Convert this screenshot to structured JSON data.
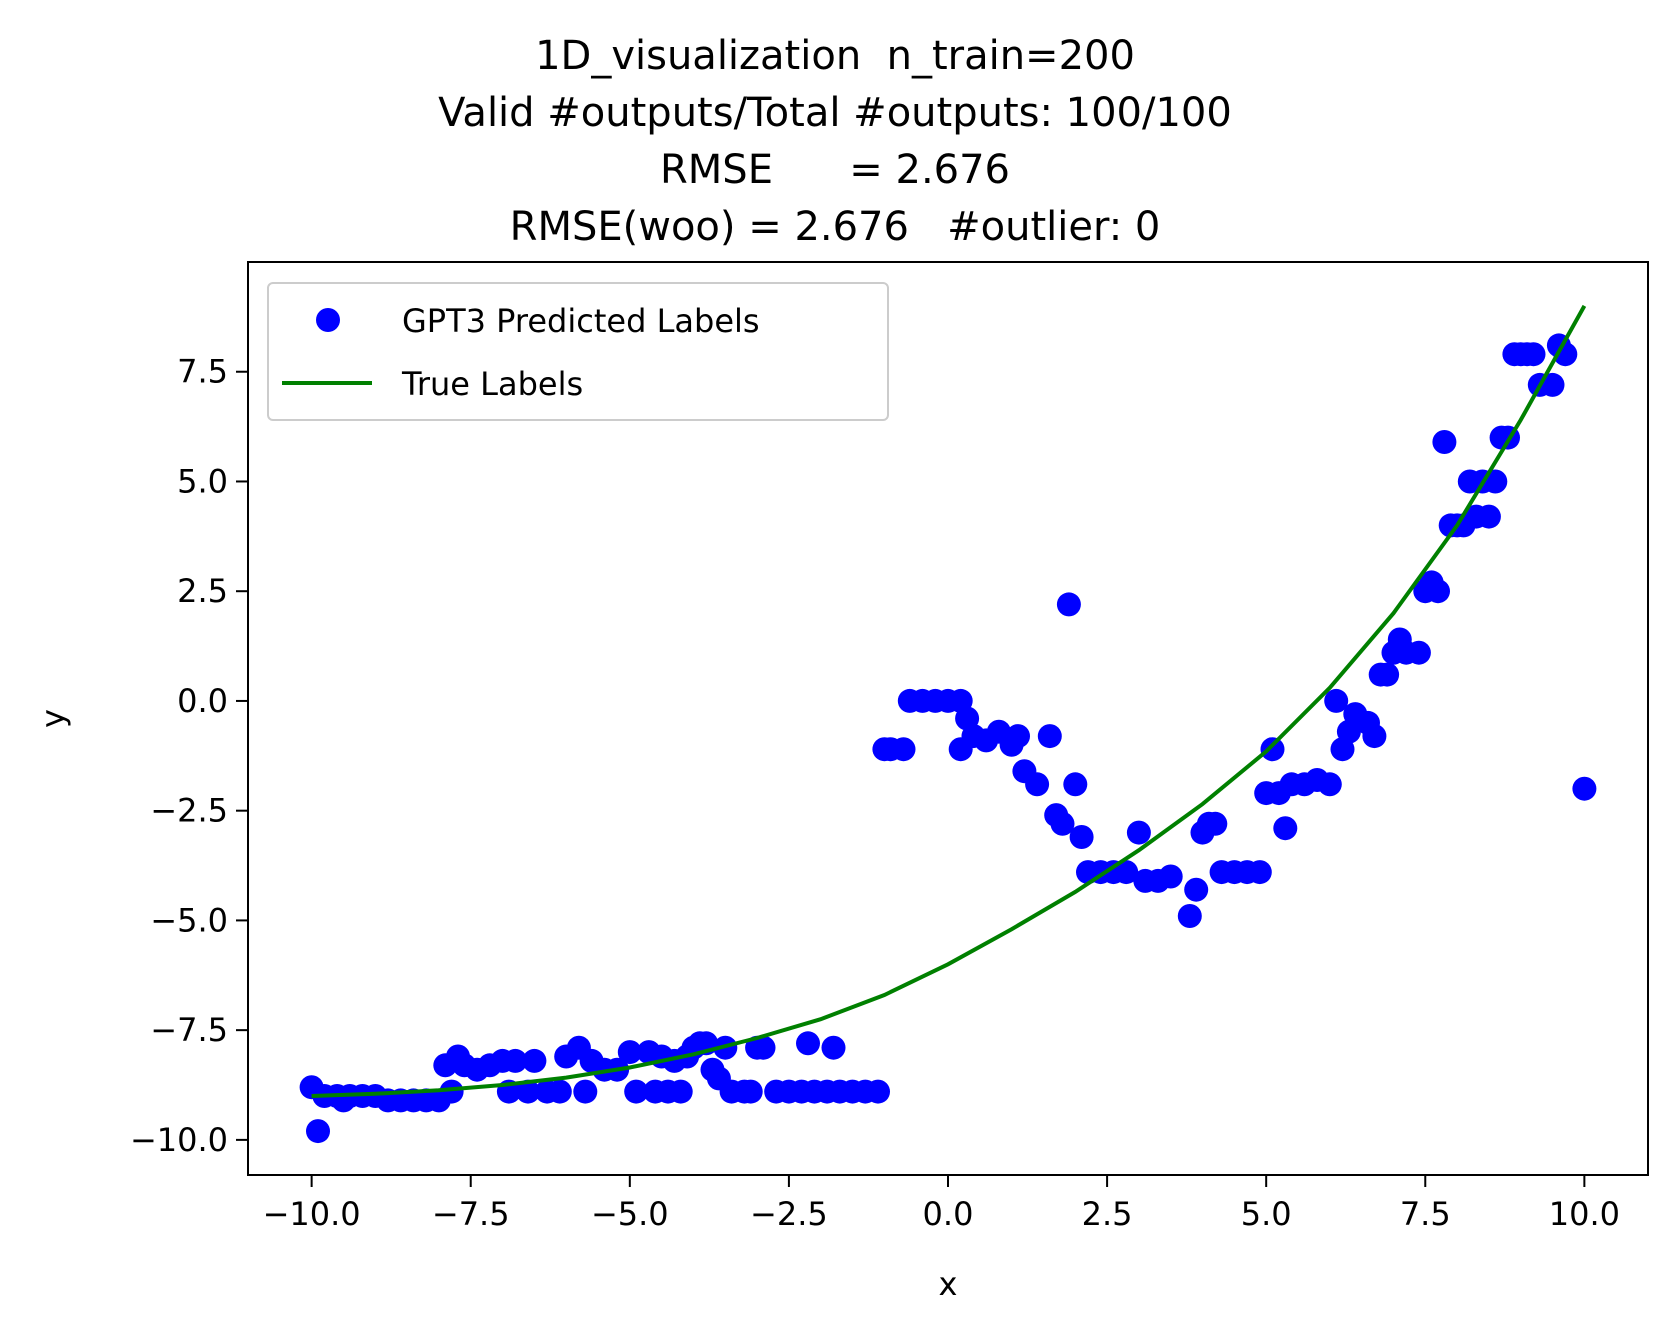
{
  "title_lines": [
    "1D_visualization  n_train=200",
    "Valid #outputs/Total #outputs: 100/100",
    "RMSE      = 2.676",
    "RMSE(woo) = 2.676   #outlier: 0"
  ],
  "chart_data": {
    "type": "scatter",
    "xlabel": "x",
    "ylabel": "y",
    "xlim": [
      -11.0,
      11.0
    ],
    "ylim": [
      -10.8,
      10.0
    ],
    "xticks": [
      -10.0,
      -7.5,
      -5.0,
      -2.5,
      0.0,
      2.5,
      5.0,
      7.5,
      10.0
    ],
    "xtick_labels": [
      "−10.0",
      "−7.5",
      "−5.0",
      "−2.5",
      "0.0",
      "2.5",
      "5.0",
      "7.5",
      "10.0"
    ],
    "yticks": [
      -10.0,
      -7.5,
      -5.0,
      -2.5,
      0.0,
      2.5,
      5.0,
      7.5
    ],
    "ytick_labels": [
      "−10.0",
      "−7.5",
      "−5.0",
      "−2.5",
      "0.0",
      "2.5",
      "5.0",
      "7.5"
    ],
    "grid": false,
    "legend_position": "top-left",
    "series": [
      {
        "name": "GPT3 Predicted Labels",
        "kind": "scatter",
        "color": "#0000ff",
        "points": [
          [
            -10.0,
            -8.8
          ],
          [
            -9.9,
            -9.8
          ],
          [
            -9.8,
            -9.0
          ],
          [
            -9.6,
            -9.0
          ],
          [
            -9.5,
            -9.1
          ],
          [
            -9.4,
            -9.0
          ],
          [
            -9.2,
            -9.0
          ],
          [
            -9.0,
            -9.0
          ],
          [
            -8.8,
            -9.1
          ],
          [
            -8.6,
            -9.1
          ],
          [
            -8.4,
            -9.1
          ],
          [
            -8.2,
            -9.1
          ],
          [
            -8.0,
            -9.1
          ],
          [
            -7.9,
            -8.3
          ],
          [
            -7.8,
            -8.9
          ],
          [
            -7.7,
            -8.1
          ],
          [
            -7.6,
            -8.3
          ],
          [
            -7.4,
            -8.4
          ],
          [
            -7.2,
            -8.3
          ],
          [
            -7.0,
            -8.2
          ],
          [
            -6.9,
            -8.9
          ],
          [
            -6.8,
            -8.2
          ],
          [
            -6.6,
            -8.9
          ],
          [
            -6.5,
            -8.2
          ],
          [
            -6.3,
            -8.9
          ],
          [
            -6.1,
            -8.9
          ],
          [
            -6.0,
            -8.1
          ],
          [
            -5.8,
            -7.9
          ],
          [
            -5.7,
            -8.9
          ],
          [
            -5.6,
            -8.2
          ],
          [
            -5.4,
            -8.4
          ],
          [
            -5.2,
            -8.4
          ],
          [
            -5.0,
            -8.0
          ],
          [
            -4.9,
            -8.9
          ],
          [
            -4.7,
            -8.0
          ],
          [
            -4.6,
            -8.9
          ],
          [
            -4.5,
            -8.1
          ],
          [
            -4.4,
            -8.9
          ],
          [
            -4.3,
            -8.2
          ],
          [
            -4.2,
            -8.9
          ],
          [
            -4.1,
            -8.1
          ],
          [
            -4.0,
            -7.9
          ],
          [
            -3.9,
            -7.8
          ],
          [
            -3.8,
            -7.8
          ],
          [
            -3.7,
            -8.4
          ],
          [
            -3.6,
            -8.6
          ],
          [
            -3.5,
            -7.9
          ],
          [
            -3.4,
            -8.9
          ],
          [
            -3.2,
            -8.9
          ],
          [
            -3.1,
            -8.9
          ],
          [
            -3.0,
            -7.9
          ],
          [
            -2.9,
            -7.9
          ],
          [
            -2.7,
            -8.9
          ],
          [
            -2.5,
            -8.9
          ],
          [
            -2.3,
            -8.9
          ],
          [
            -2.2,
            -7.8
          ],
          [
            -2.1,
            -8.9
          ],
          [
            -1.9,
            -8.9
          ],
          [
            -1.8,
            -7.9
          ],
          [
            -1.7,
            -8.9
          ],
          [
            -1.5,
            -8.9
          ],
          [
            -1.3,
            -8.9
          ],
          [
            -1.1,
            -8.9
          ],
          [
            -1.0,
            -1.1
          ],
          [
            -0.9,
            -1.1
          ],
          [
            -0.7,
            -1.1
          ],
          [
            -0.6,
            0.0
          ],
          [
            -0.4,
            0.0
          ],
          [
            -0.2,
            0.0
          ],
          [
            0.0,
            0.0
          ],
          [
            0.2,
            0.0
          ],
          [
            0.3,
            -0.4
          ],
          [
            0.2,
            -1.1
          ],
          [
            0.4,
            -0.8
          ],
          [
            0.6,
            -0.9
          ],
          [
            0.8,
            -0.7
          ],
          [
            1.0,
            -1.0
          ],
          [
            1.1,
            -0.8
          ],
          [
            1.2,
            -1.6
          ],
          [
            1.4,
            -1.9
          ],
          [
            1.6,
            -0.8
          ],
          [
            1.7,
            -2.6
          ],
          [
            1.8,
            -2.8
          ],
          [
            1.9,
            2.2
          ],
          [
            2.0,
            -1.9
          ],
          [
            2.1,
            -3.1
          ],
          [
            2.2,
            -3.9
          ],
          [
            2.4,
            -3.9
          ],
          [
            2.6,
            -3.9
          ],
          [
            2.8,
            -3.9
          ],
          [
            3.0,
            -3.0
          ],
          [
            3.1,
            -4.1
          ],
          [
            3.3,
            -4.1
          ],
          [
            3.5,
            -4.0
          ],
          [
            3.8,
            -4.9
          ],
          [
            3.9,
            -4.3
          ],
          [
            4.0,
            -3.0
          ],
          [
            4.1,
            -2.8
          ],
          [
            4.2,
            -2.8
          ],
          [
            4.3,
            -3.9
          ],
          [
            4.5,
            -3.9
          ],
          [
            4.7,
            -3.9
          ],
          [
            4.9,
            -3.9
          ],
          [
            5.0,
            -2.1
          ],
          [
            5.1,
            -1.1
          ],
          [
            5.2,
            -2.1
          ],
          [
            5.3,
            -2.9
          ],
          [
            5.4,
            -1.9
          ],
          [
            5.6,
            -1.9
          ],
          [
            5.8,
            -1.8
          ],
          [
            6.0,
            -1.9
          ],
          [
            6.1,
            0.0
          ],
          [
            6.2,
            -1.1
          ],
          [
            6.3,
            -0.7
          ],
          [
            6.4,
            -0.3
          ],
          [
            6.6,
            -0.5
          ],
          [
            6.7,
            -0.8
          ],
          [
            6.8,
            0.6
          ],
          [
            6.9,
            0.6
          ],
          [
            7.0,
            1.1
          ],
          [
            7.1,
            1.4
          ],
          [
            7.2,
            1.1
          ],
          [
            7.4,
            1.1
          ],
          [
            7.5,
            2.5
          ],
          [
            7.6,
            2.7
          ],
          [
            7.7,
            2.5
          ],
          [
            7.8,
            5.9
          ],
          [
            7.9,
            4.0
          ],
          [
            8.0,
            4.0
          ],
          [
            8.1,
            4.0
          ],
          [
            8.2,
            5.0
          ],
          [
            8.3,
            4.2
          ],
          [
            8.4,
            5.0
          ],
          [
            8.5,
            4.2
          ],
          [
            8.6,
            5.0
          ],
          [
            8.7,
            6.0
          ],
          [
            8.8,
            6.0
          ],
          [
            8.9,
            7.9
          ],
          [
            9.0,
            7.9
          ],
          [
            9.1,
            7.9
          ],
          [
            9.2,
            7.9
          ],
          [
            9.3,
            7.2
          ],
          [
            9.5,
            7.2
          ],
          [
            9.6,
            8.1
          ],
          [
            9.7,
            7.9
          ],
          [
            10.0,
            -2.0
          ]
        ]
      },
      {
        "name": "True Labels",
        "kind": "line",
        "color": "#008000",
        "points": [
          [
            -10.0,
            -9.0
          ],
          [
            -9.0,
            -8.95
          ],
          [
            -8.0,
            -8.87
          ],
          [
            -7.0,
            -8.75
          ],
          [
            -6.0,
            -8.58
          ],
          [
            -5.0,
            -8.35
          ],
          [
            -4.0,
            -8.05
          ],
          [
            -3.0,
            -7.68
          ],
          [
            -2.0,
            -7.25
          ],
          [
            -1.0,
            -6.7
          ],
          [
            0.0,
            -6.0
          ],
          [
            1.0,
            -5.2
          ],
          [
            2.0,
            -4.35
          ],
          [
            3.0,
            -3.4
          ],
          [
            4.0,
            -2.35
          ],
          [
            5.0,
            -1.15
          ],
          [
            6.0,
            0.3
          ],
          [
            7.0,
            2.0
          ],
          [
            8.0,
            4.0
          ],
          [
            9.0,
            6.4
          ],
          [
            10.0,
            9.0
          ]
        ]
      }
    ]
  }
}
